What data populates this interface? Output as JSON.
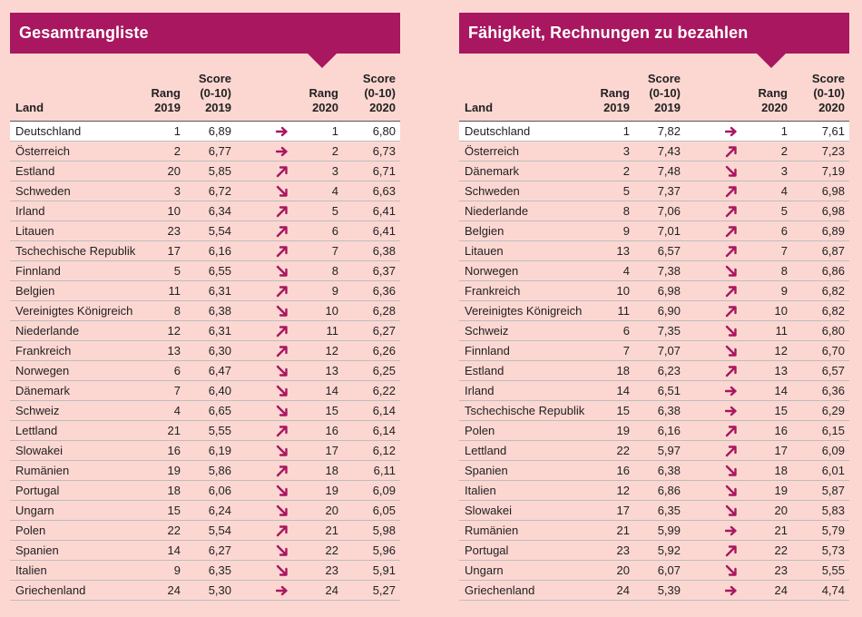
{
  "colors": {
    "accent": "#a8175f",
    "background": "#fcd7d2",
    "highlight": "#ffffff"
  },
  "columns": {
    "land": "Land",
    "rang2019": [
      "Rang",
      "2019"
    ],
    "score2019": [
      "Score",
      "(0-10)",
      "2019"
    ],
    "rang2020": [
      "Rang",
      "2020"
    ],
    "score2020": [
      "Score",
      "(0-10)",
      "2020"
    ]
  },
  "tables": [
    {
      "title": "Gesamtrangliste",
      "rows": [
        {
          "land": "Deutschland",
          "r19": "1",
          "s19": "6,89",
          "trend": "right",
          "r20": "1",
          "s20": "6,80"
        },
        {
          "land": "Österreich",
          "r19": "2",
          "s19": "6,77",
          "trend": "right",
          "r20": "2",
          "s20": "6,73"
        },
        {
          "land": "Estland",
          "r19": "20",
          "s19": "5,85",
          "trend": "up",
          "r20": "3",
          "s20": "6,71"
        },
        {
          "land": "Schweden",
          "r19": "3",
          "s19": "6,72",
          "trend": "down",
          "r20": "4",
          "s20": "6,63"
        },
        {
          "land": "Irland",
          "r19": "10",
          "s19": "6,34",
          "trend": "up",
          "r20": "5",
          "s20": "6,41"
        },
        {
          "land": "Litauen",
          "r19": "23",
          "s19": "5,54",
          "trend": "up",
          "r20": "6",
          "s20": "6,41"
        },
        {
          "land": "Tschechische Republik",
          "r19": "17",
          "s19": "6,16",
          "trend": "up",
          "r20": "7",
          "s20": "6,38"
        },
        {
          "land": "Finnland",
          "r19": "5",
          "s19": "6,55",
          "trend": "down",
          "r20": "8",
          "s20": "6,37"
        },
        {
          "land": "Belgien",
          "r19": "11",
          "s19": "6,31",
          "trend": "up",
          "r20": "9",
          "s20": "6,36"
        },
        {
          "land": "Vereinigtes Königreich",
          "r19": "8",
          "s19": "6,38",
          "trend": "down",
          "r20": "10",
          "s20": "6,28"
        },
        {
          "land": "Niederlande",
          "r19": "12",
          "s19": "6,31",
          "trend": "up",
          "r20": "11",
          "s20": "6,27"
        },
        {
          "land": "Frankreich",
          "r19": "13",
          "s19": "6,30",
          "trend": "up",
          "r20": "12",
          "s20": "6,26"
        },
        {
          "land": "Norwegen",
          "r19": "6",
          "s19": "6,47",
          "trend": "down",
          "r20": "13",
          "s20": "6,25"
        },
        {
          "land": "Dänemark",
          "r19": "7",
          "s19": "6,40",
          "trend": "down",
          "r20": "14",
          "s20": "6,22"
        },
        {
          "land": "Schweiz",
          "r19": "4",
          "s19": "6,65",
          "trend": "down",
          "r20": "15",
          "s20": "6,14"
        },
        {
          "land": "Lettland",
          "r19": "21",
          "s19": "5,55",
          "trend": "up",
          "r20": "16",
          "s20": "6,14"
        },
        {
          "land": "Slowakei",
          "r19": "16",
          "s19": "6,19",
          "trend": "down",
          "r20": "17",
          "s20": "6,12"
        },
        {
          "land": "Rumänien",
          "r19": "19",
          "s19": "5,86",
          "trend": "up",
          "r20": "18",
          "s20": "6,11"
        },
        {
          "land": "Portugal",
          "r19": "18",
          "s19": "6,06",
          "trend": "down",
          "r20": "19",
          "s20": "6,09"
        },
        {
          "land": "Ungarn",
          "r19": "15",
          "s19": "6,24",
          "trend": "down",
          "r20": "20",
          "s20": "6,05"
        },
        {
          "land": "Polen",
          "r19": "22",
          "s19": "5,54",
          "trend": "up",
          "r20": "21",
          "s20": "5,98"
        },
        {
          "land": "Spanien",
          "r19": "14",
          "s19": "6,27",
          "trend": "down",
          "r20": "22",
          "s20": "5,96"
        },
        {
          "land": "Italien",
          "r19": "9",
          "s19": "6,35",
          "trend": "down",
          "r20": "23",
          "s20": "5,91"
        },
        {
          "land": "Griechenland",
          "r19": "24",
          "s19": "5,30",
          "trend": "right",
          "r20": "24",
          "s20": "5,27"
        }
      ]
    },
    {
      "title": "Fähigkeit, Rechnungen zu bezahlen",
      "rows": [
        {
          "land": "Deutschland",
          "r19": "1",
          "s19": "7,82",
          "trend": "right",
          "r20": "1",
          "s20": "7,61"
        },
        {
          "land": "Österreich",
          "r19": "3",
          "s19": "7,43",
          "trend": "up",
          "r20": "2",
          "s20": "7,23"
        },
        {
          "land": "Dänemark",
          "r19": "2",
          "s19": "7,48",
          "trend": "down",
          "r20": "3",
          "s20": "7,19"
        },
        {
          "land": "Schweden",
          "r19": "5",
          "s19": "7,37",
          "trend": "up",
          "r20": "4",
          "s20": "6,98"
        },
        {
          "land": "Niederlande",
          "r19": "8",
          "s19": "7,06",
          "trend": "up",
          "r20": "5",
          "s20": "6,98"
        },
        {
          "land": "Belgien",
          "r19": "9",
          "s19": "7,01",
          "trend": "up",
          "r20": "6",
          "s20": "6,89"
        },
        {
          "land": "Litauen",
          "r19": "13",
          "s19": "6,57",
          "trend": "up",
          "r20": "7",
          "s20": "6,87"
        },
        {
          "land": "Norwegen",
          "r19": "4",
          "s19": "7,38",
          "trend": "down",
          "r20": "8",
          "s20": "6,86"
        },
        {
          "land": "Frankreich",
          "r19": "10",
          "s19": "6,98",
          "trend": "up",
          "r20": "9",
          "s20": "6,82"
        },
        {
          "land": "Vereinigtes Königreich",
          "r19": "11",
          "s19": "6,90",
          "trend": "up",
          "r20": "10",
          "s20": "6,82"
        },
        {
          "land": "Schweiz",
          "r19": "6",
          "s19": "7,35",
          "trend": "down",
          "r20": "11",
          "s20": "6,80"
        },
        {
          "land": "Finnland",
          "r19": "7",
          "s19": "7,07",
          "trend": "down",
          "r20": "12",
          "s20": "6,70"
        },
        {
          "land": "Estland",
          "r19": "18",
          "s19": "6,23",
          "trend": "up",
          "r20": "13",
          "s20": "6,57"
        },
        {
          "land": "Irland",
          "r19": "14",
          "s19": "6,51",
          "trend": "right",
          "r20": "14",
          "s20": "6,36"
        },
        {
          "land": "Tschechische Republik",
          "r19": "15",
          "s19": "6,38",
          "trend": "right",
          "r20": "15",
          "s20": "6,29"
        },
        {
          "land": "Polen",
          "r19": "19",
          "s19": "6,16",
          "trend": "up",
          "r20": "16",
          "s20": "6,15"
        },
        {
          "land": "Lettland",
          "r19": "22",
          "s19": "5,97",
          "trend": "up",
          "r20": "17",
          "s20": "6,09"
        },
        {
          "land": "Spanien",
          "r19": "16",
          "s19": "6,38",
          "trend": "down",
          "r20": "18",
          "s20": "6,01"
        },
        {
          "land": "Italien",
          "r19": "12",
          "s19": "6,86",
          "trend": "down",
          "r20": "19",
          "s20": "5,87"
        },
        {
          "land": "Slowakei",
          "r19": "17",
          "s19": "6,35",
          "trend": "down",
          "r20": "20",
          "s20": "5,83"
        },
        {
          "land": "Rumänien",
          "r19": "21",
          "s19": "5,99",
          "trend": "right",
          "r20": "21",
          "s20": "5,79"
        },
        {
          "land": "Portugal",
          "r19": "23",
          "s19": "5,92",
          "trend": "up",
          "r20": "22",
          "s20": "5,73"
        },
        {
          "land": "Ungarn",
          "r19": "20",
          "s19": "6,07",
          "trend": "down",
          "r20": "23",
          "s20": "5,55"
        },
        {
          "land": "Griechenland",
          "r19": "24",
          "s19": "5,39",
          "trend": "right",
          "r20": "24",
          "s20": "4,74"
        }
      ]
    }
  ]
}
